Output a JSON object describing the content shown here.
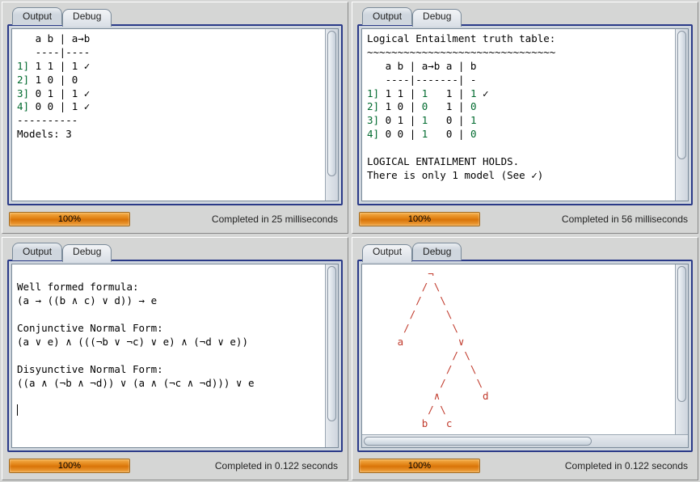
{
  "tabs": {
    "output": "Output",
    "debug": "Debug"
  },
  "panels": {
    "top_left": {
      "active_tab": "output",
      "progress_label": "100%",
      "status": "Completed in 25 milliseconds",
      "header": "   a b | a→b",
      "divider": "   ----|----",
      "rows": [
        {
          "idx": "1]",
          "ab": "1 1",
          "res": "1",
          "check": true
        },
        {
          "idx": "2]",
          "ab": "1 0",
          "res": "0",
          "check": false
        },
        {
          "idx": "3]",
          "ab": "0 1",
          "res": "1",
          "check": true
        },
        {
          "idx": "4]",
          "ab": "0 0",
          "res": "1",
          "check": true
        }
      ],
      "footer_div": "----------",
      "models": "Models: 3",
      "colors": {
        "row_index": "#006a2e",
        "text": "#000000"
      }
    },
    "top_right": {
      "active_tab": "output",
      "progress_label": "100%",
      "status": "Completed in 56 milliseconds",
      "title": "Logical Entailment truth table:",
      "wave": "~~~~~~~~~~~~~~~~~~~~~~~~~~~~~~~",
      "header": "   a b | a→b a | b",
      "divider": "   ----|-------| -",
      "rows": [
        {
          "idx": "1]",
          "ab": "1 1",
          "mid1": "1",
          "mid2": "1",
          "r": "1",
          "check": true
        },
        {
          "idx": "2]",
          "ab": "1 0",
          "mid1": "0",
          "mid2": "1",
          "r": "0",
          "check": false
        },
        {
          "idx": "3]",
          "ab": "0 1",
          "mid1": "1",
          "mid2": "0",
          "r": "1",
          "check": false
        },
        {
          "idx": "4]",
          "ab": "0 0",
          "mid1": "1",
          "mid2": "0",
          "r": "0",
          "check": false
        }
      ],
      "conclusion1": "LOGICAL ENTAILMENT HOLDS.",
      "conclusion2": "There is only 1 model (See ✓)"
    },
    "bottom_left": {
      "active_tab": "output",
      "progress_label": "100%",
      "status": "Completed in 0.122 seconds",
      "lines": [
        "",
        "Well formed formula:",
        "(a → ((b ∧ c) ∨ d)) → e",
        "",
        "Conjunctive Normal Form:",
        "(a ∨ e) ∧ (((¬b ∨ ¬c) ∨ e) ∧ (¬d ∨ e))",
        "",
        "Disyunctive Normal Form:",
        "((a ∧ (¬b ∧ ¬d)) ∨ (a ∧ (¬c ∧ ¬d))) ∨ e",
        ""
      ]
    },
    "bottom_right": {
      "active_tab": "debug",
      "progress_label": "100%",
      "status": "Completed in 0.122 seconds",
      "has_hscroll": true,
      "tree_color": "#c0392b",
      "tree_lines": [
        "          ¬",
        "         / \\",
        "        /   \\",
        "       /     \\",
        "      /       \\",
        "     a         ∨",
        "              / \\",
        "             /   \\",
        "            /     \\",
        "           ∧       d",
        "          / \\",
        "         b   c"
      ]
    }
  },
  "style": {
    "accent_border": "#2a3a88",
    "progress_bg": "#e07f12",
    "highlight_green": "#006a2e",
    "tree_red": "#c0392b",
    "background": "#d5d6d5",
    "font_mono": "monospace",
    "font_size_pt": 10
  }
}
